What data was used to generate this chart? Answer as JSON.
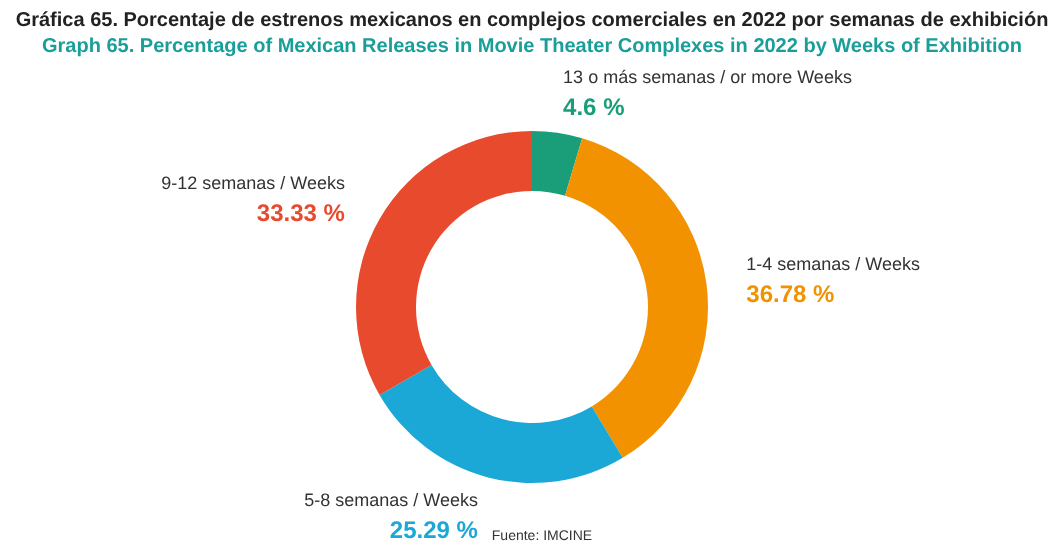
{
  "chart_data": {
    "type": "donut",
    "title": "Gráfica 65. Porcentaje de estrenos mexicanos en complejos comerciales en 2022 por semanas de exhibición",
    "subtitle": "Graph 65. Percentage of Mexican Releases in Movie Theater Complexes in 2022 by Weeks of Exhibition",
    "categories": [
      "13 o más semanas / or more Weeks",
      "1-4 semanas / Weeks",
      "5-8 semanas / Weeks",
      "9-12 semanas / Weeks"
    ],
    "values": [
      4.6,
      36.78,
      25.29,
      33.33
    ],
    "value_labels": [
      "4.6 %",
      "36.78 %",
      "25.29 %",
      "33.33 %"
    ],
    "colors": [
      "#1a9e7a",
      "#f39200",
      "#1ba8d6",
      "#e84a2e"
    ],
    "legend": false,
    "annotations": [
      "Fuente: IMCINE"
    ]
  }
}
